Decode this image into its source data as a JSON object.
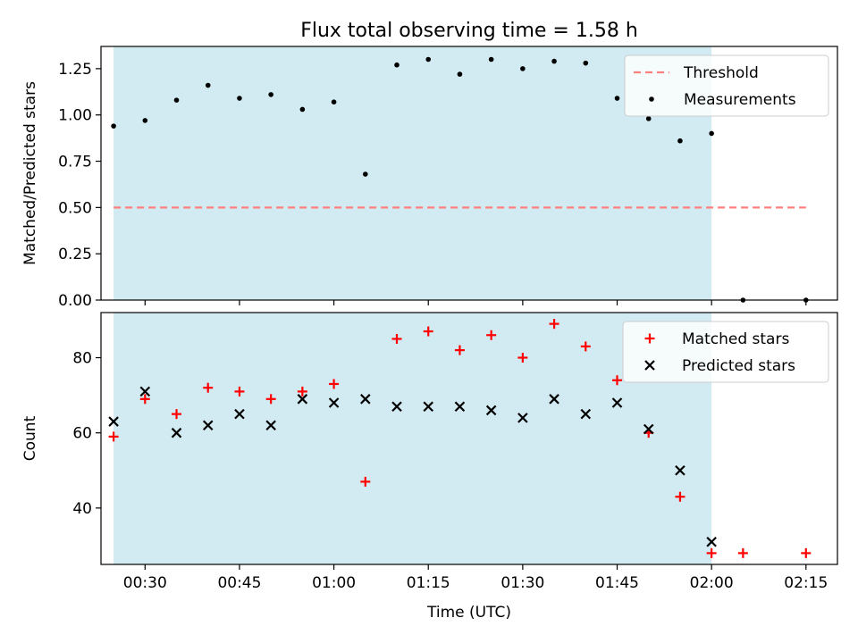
{
  "title": "Flux total observing time = 1.58 h",
  "chart_data": [
    {
      "type": "scatter",
      "ylabel": "Matched/Predicted stars",
      "xlabel": "",
      "xlim": [
        "00:23",
        "02:20"
      ],
      "ylim": [
        0,
        1.37
      ],
      "xticks": [
        "00:30",
        "00:45",
        "01:00",
        "01:15",
        "01:30",
        "01:45",
        "02:00",
        "02:15"
      ],
      "ytick_labels": [
        "0.00",
        "0.25",
        "0.50",
        "0.75",
        "1.00",
        "1.25"
      ],
      "ytick_values": [
        0,
        0.25,
        0.5,
        0.75,
        1.0,
        1.25
      ],
      "shaded_span": [
        "00:25",
        "02:00"
      ],
      "shaded_color": "#add8e6",
      "grid": false,
      "legend_position": "upper right",
      "threshold": {
        "name": "Threshold",
        "y": 0.5,
        "x_range": [
          "00:25",
          "02:15"
        ],
        "color": "#ff7f7f",
        "style": "dashed"
      },
      "series": [
        {
          "name": "Measurements",
          "color": "#000000",
          "marker": "dot",
          "x": [
            "00:25",
            "00:30",
            "00:35",
            "00:40",
            "00:45",
            "00:50",
            "00:55",
            "01:00",
            "01:05",
            "01:10",
            "01:15",
            "01:20",
            "01:25",
            "01:30",
            "01:35",
            "01:40",
            "01:45",
            "01:50",
            "01:55",
            "02:00",
            "02:05",
            "02:15"
          ],
          "y": [
            0.94,
            0.97,
            1.08,
            1.16,
            1.09,
            1.11,
            1.03,
            1.07,
            0.68,
            1.27,
            1.3,
            1.22,
            1.3,
            1.25,
            1.29,
            1.28,
            1.09,
            0.98,
            0.86,
            0.9,
            0.0,
            0.0
          ]
        }
      ]
    },
    {
      "type": "scatter",
      "ylabel": "Count",
      "xlabel": "Time (UTC)",
      "xlim": [
        "00:23",
        "02:20"
      ],
      "ylim": [
        25,
        92
      ],
      "xticks": [
        "00:30",
        "00:45",
        "01:00",
        "01:15",
        "01:30",
        "01:45",
        "02:00",
        "02:15"
      ],
      "ytick_labels": [
        "40",
        "60",
        "80"
      ],
      "ytick_values": [
        40,
        60,
        80
      ],
      "shaded_span": [
        "00:25",
        "02:00"
      ],
      "shaded_color": "#add8e6",
      "grid": false,
      "legend_position": "upper right",
      "series": [
        {
          "name": "Matched stars",
          "color": "#ff0000",
          "marker": "plus",
          "x": [
            "00:25",
            "00:30",
            "00:35",
            "00:40",
            "00:45",
            "00:50",
            "00:55",
            "01:00",
            "01:05",
            "01:10",
            "01:15",
            "01:20",
            "01:25",
            "01:30",
            "01:35",
            "01:40",
            "01:45",
            "01:50",
            "01:55",
            "02:00",
            "02:05",
            "02:15"
          ],
          "y": [
            59,
            69,
            65,
            72,
            71,
            69,
            71,
            73,
            47,
            85,
            87,
            82,
            86,
            80,
            89,
            83,
            74,
            60,
            43,
            28,
            28,
            28
          ]
        },
        {
          "name": "Predicted stars",
          "color": "#000000",
          "marker": "x",
          "x": [
            "00:25",
            "00:30",
            "00:35",
            "00:40",
            "00:45",
            "00:50",
            "00:55",
            "01:00",
            "01:05",
            "01:10",
            "01:15",
            "01:20",
            "01:25",
            "01:30",
            "01:35",
            "01:40",
            "01:45",
            "01:50",
            "01:55",
            "02:00"
          ],
          "y": [
            63,
            71,
            60,
            62,
            65,
            62,
            69,
            68,
            69,
            67,
            67,
            67,
            66,
            64,
            69,
            65,
            68,
            61,
            50,
            31
          ]
        }
      ]
    }
  ]
}
